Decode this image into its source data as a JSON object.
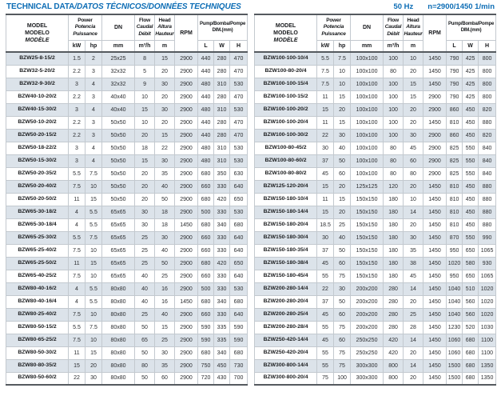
{
  "page": {
    "title_en": "TECHNICAL DATA",
    "title_intl": "/DATOS TÉCNICOS/DONNÉES TECHNIQUES",
    "frequency": "50 Hz",
    "speed": "n=2900/1450 1/min"
  },
  "colors": {
    "accent_blue": "#0d6db5",
    "row_stripe": "#dce3ea",
    "border_dark": "#555a5f",
    "border_light": "#c3c9cf"
  },
  "header": {
    "model_l1": "MODEL",
    "model_l2": "MODELO",
    "model_l3": "MODÈLE",
    "power_l1": "Power",
    "power_l2": "Potencia",
    "power_l3": "Puissance",
    "power_unit1": "kW",
    "power_unit2": "hp",
    "dn_label": "DN",
    "dn_unit": "mm",
    "flow_l1": "Flow",
    "flow_l2": "Caudal",
    "flow_l3": "Débit",
    "flow_unit": "m³/h",
    "head_l1": "Head",
    "head_l2": "Altura",
    "head_l3": "Hauteur",
    "head_unit": "m",
    "rpm_label": "RPM",
    "dim_l1": "Pump/Bomba/Pompe",
    "dim_l2": "DIM.(mm)",
    "dim_unit_l": "L",
    "dim_unit_w": "W",
    "dim_unit_h": "H"
  },
  "tables": {
    "left": {
      "rows": [
        [
          "BZW25-8-15/2",
          "1.5",
          "2",
          "25x25",
          "8",
          "15",
          "2900",
          "440",
          "280",
          "470"
        ],
        [
          "BZW32-5-20/2",
          "2.2",
          "3",
          "32x32",
          "5",
          "20",
          "2900",
          "440",
          "280",
          "470"
        ],
        [
          "BZW32-9-30/2",
          "3",
          "4",
          "32x32",
          "9",
          "30",
          "2900",
          "480",
          "310",
          "530"
        ],
        [
          "BZW40-10-20/2",
          "2.2",
          "3",
          "40x40",
          "10",
          "20",
          "2900",
          "440",
          "280",
          "470"
        ],
        [
          "BZW40-15-30/2",
          "3",
          "4",
          "40x40",
          "15",
          "30",
          "2900",
          "480",
          "310",
          "530"
        ],
        [
          "BZW50-10-20/2",
          "2.2",
          "3",
          "50x50",
          "10",
          "20",
          "2900",
          "440",
          "280",
          "470"
        ],
        [
          "BZW50-20-15/2",
          "2.2",
          "3",
          "50x50",
          "20",
          "15",
          "2900",
          "440",
          "280",
          "470"
        ],
        [
          "BZW50-18-22/2",
          "3",
          "4",
          "50x50",
          "18",
          "22",
          "2900",
          "480",
          "310",
          "530"
        ],
        [
          "BZW50-15-30/2",
          "3",
          "4",
          "50x50",
          "15",
          "30",
          "2900",
          "480",
          "310",
          "530"
        ],
        [
          "BZW50-20-35/2",
          "5.5",
          "7.5",
          "50x50",
          "20",
          "35",
          "2900",
          "680",
          "350",
          "630"
        ],
        [
          "BZW50-20-40/2",
          "7.5",
          "10",
          "50x50",
          "20",
          "40",
          "2900",
          "660",
          "330",
          "640"
        ],
        [
          "BZW50-20-50/2",
          "11",
          "15",
          "50x50",
          "20",
          "50",
          "2900",
          "680",
          "420",
          "650"
        ],
        [
          "BZW65-30-18/2",
          "4",
          "5.5",
          "65x65",
          "30",
          "18",
          "2900",
          "500",
          "330",
          "530"
        ],
        [
          "BZW65-30-18/4",
          "4",
          "5.5",
          "65x65",
          "30",
          "18",
          "1450",
          "680",
          "340",
          "680"
        ],
        [
          "BZW65-25-30/2",
          "5.5",
          "7.5",
          "65x65",
          "25",
          "30",
          "2900",
          "660",
          "330",
          "640"
        ],
        [
          "BZW65-25-40/2",
          "7.5",
          "10",
          "65x65",
          "25",
          "40",
          "2900",
          "660",
          "330",
          "640"
        ],
        [
          "BZW65-25-50/2",
          "11",
          "15",
          "65x65",
          "25",
          "50",
          "2900",
          "680",
          "420",
          "650"
        ],
        [
          "BZW65-40-25/2",
          "7.5",
          "10",
          "65x65",
          "40",
          "25",
          "2900",
          "660",
          "330",
          "640"
        ],
        [
          "BZW80-40-16/2",
          "4",
          "5.5",
          "80x80",
          "40",
          "16",
          "2900",
          "500",
          "330",
          "530"
        ],
        [
          "BZW80-40-16/4",
          "4",
          "5.5",
          "80x80",
          "40",
          "16",
          "1450",
          "680",
          "340",
          "680"
        ],
        [
          "BZW80-25-40/2",
          "7.5",
          "10",
          "80x80",
          "25",
          "40",
          "2900",
          "660",
          "330",
          "640"
        ],
        [
          "BZW80-50-15/2",
          "5.5",
          "7.5",
          "80x80",
          "50",
          "15",
          "2900",
          "590",
          "335",
          "590"
        ],
        [
          "BZW80-65-25/2",
          "7.5",
          "10",
          "80x80",
          "65",
          "25",
          "2900",
          "590",
          "335",
          "590"
        ],
        [
          "BZW80-50-30/2",
          "11",
          "15",
          "80x80",
          "50",
          "30",
          "2900",
          "680",
          "340",
          "680"
        ],
        [
          "BZW80-80-35/2",
          "15",
          "20",
          "80x80",
          "80",
          "35",
          "2900",
          "750",
          "450",
          "730"
        ],
        [
          "BZW80-50-60/2",
          "22",
          "30",
          "80x80",
          "50",
          "60",
          "2900",
          "720",
          "430",
          "700"
        ]
      ]
    },
    "right": {
      "rows": [
        [
          "BZW100-100-10/4",
          "5.5",
          "7.5",
          "100x100",
          "100",
          "10",
          "1450",
          "790",
          "425",
          "800"
        ],
        [
          "BZW100-80-20/4",
          "7.5",
          "10",
          "100x100",
          "80",
          "20",
          "1450",
          "790",
          "425",
          "800"
        ],
        [
          "BZW100-100-15/4",
          "7.5",
          "10",
          "100x100",
          "100",
          "15",
          "1450",
          "790",
          "425",
          "800"
        ],
        [
          "BZW100-100-15/2",
          "11",
          "15",
          "100x100",
          "100",
          "15",
          "2900",
          "790",
          "425",
          "800"
        ],
        [
          "BZW100-100-20/2",
          "15",
          "20",
          "100x100",
          "100",
          "20",
          "2900",
          "860",
          "450",
          "820"
        ],
        [
          "BZW100-100-20/4",
          "11",
          "15",
          "100x100",
          "100",
          "20",
          "1450",
          "810",
          "450",
          "880"
        ],
        [
          "BZW100-100-30/2",
          "22",
          "30",
          "100x100",
          "100",
          "30",
          "2900",
          "860",
          "450",
          "820"
        ],
        [
          "BZW100-80-45/2",
          "30",
          "40",
          "100x100",
          "80",
          "45",
          "2900",
          "825",
          "550",
          "840"
        ],
        [
          "BZW100-80-60/2",
          "37",
          "50",
          "100x100",
          "80",
          "60",
          "2900",
          "825",
          "550",
          "840"
        ],
        [
          "BZW100-80-80/2",
          "45",
          "60",
          "100x100",
          "80",
          "80",
          "2900",
          "825",
          "550",
          "840"
        ],
        [
          "BZW125-120-20/4",
          "15",
          "20",
          "125x125",
          "120",
          "20",
          "1450",
          "810",
          "450",
          "880"
        ],
        [
          "BZW150-180-10/4",
          "11",
          "15",
          "150x150",
          "180",
          "10",
          "1450",
          "810",
          "450",
          "880"
        ],
        [
          "BZW150-180-14/4",
          "15",
          "20",
          "150x150",
          "180",
          "14",
          "1450",
          "810",
          "450",
          "880"
        ],
        [
          "BZW150-180-20/4",
          "18.5",
          "25",
          "150x150",
          "180",
          "20",
          "1450",
          "810",
          "450",
          "880"
        ],
        [
          "BZW150-180-30/4",
          "30",
          "40",
          "150x150",
          "180",
          "30",
          "1450",
          "870",
          "550",
          "990"
        ],
        [
          "BZW150-180-35/4",
          "37",
          "50",
          "150x150",
          "180",
          "35",
          "1450",
          "950",
          "650",
          "1065"
        ],
        [
          "BZW150-180-38/4",
          "45",
          "60",
          "150x150",
          "180",
          "38",
          "1450",
          "1020",
          "580",
          "930"
        ],
        [
          "BZW150-180-45/4",
          "55",
          "75",
          "150x150",
          "180",
          "45",
          "1450",
          "950",
          "650",
          "1065"
        ],
        [
          "BZW200-280-14/4",
          "22",
          "30",
          "200x200",
          "280",
          "14",
          "1450",
          "1040",
          "510",
          "1020"
        ],
        [
          "BZW200-280-20/4",
          "37",
          "50",
          "200x200",
          "280",
          "20",
          "1450",
          "1040",
          "560",
          "1020"
        ],
        [
          "BZW200-280-25/4",
          "45",
          "60",
          "200x200",
          "280",
          "25",
          "1450",
          "1040",
          "560",
          "1020"
        ],
        [
          "BZW200-280-28/4",
          "55",
          "75",
          "200x200",
          "280",
          "28",
          "1450",
          "1230",
          "520",
          "1030"
        ],
        [
          "BZW250-420-14/4",
          "45",
          "60",
          "250x250",
          "420",
          "14",
          "1450",
          "1060",
          "680",
          "1100"
        ],
        [
          "BZW250-420-20/4",
          "55",
          "75",
          "250x250",
          "420",
          "20",
          "1450",
          "1060",
          "680",
          "1100"
        ],
        [
          "BZW300-800-14/4",
          "55",
          "75",
          "300x300",
          "800",
          "14",
          "1450",
          "1500",
          "680",
          "1350"
        ],
        [
          "BZW300-800-20/4",
          "75",
          "100",
          "300x300",
          "800",
          "20",
          "1450",
          "1500",
          "680",
          "1350"
        ]
      ]
    }
  }
}
